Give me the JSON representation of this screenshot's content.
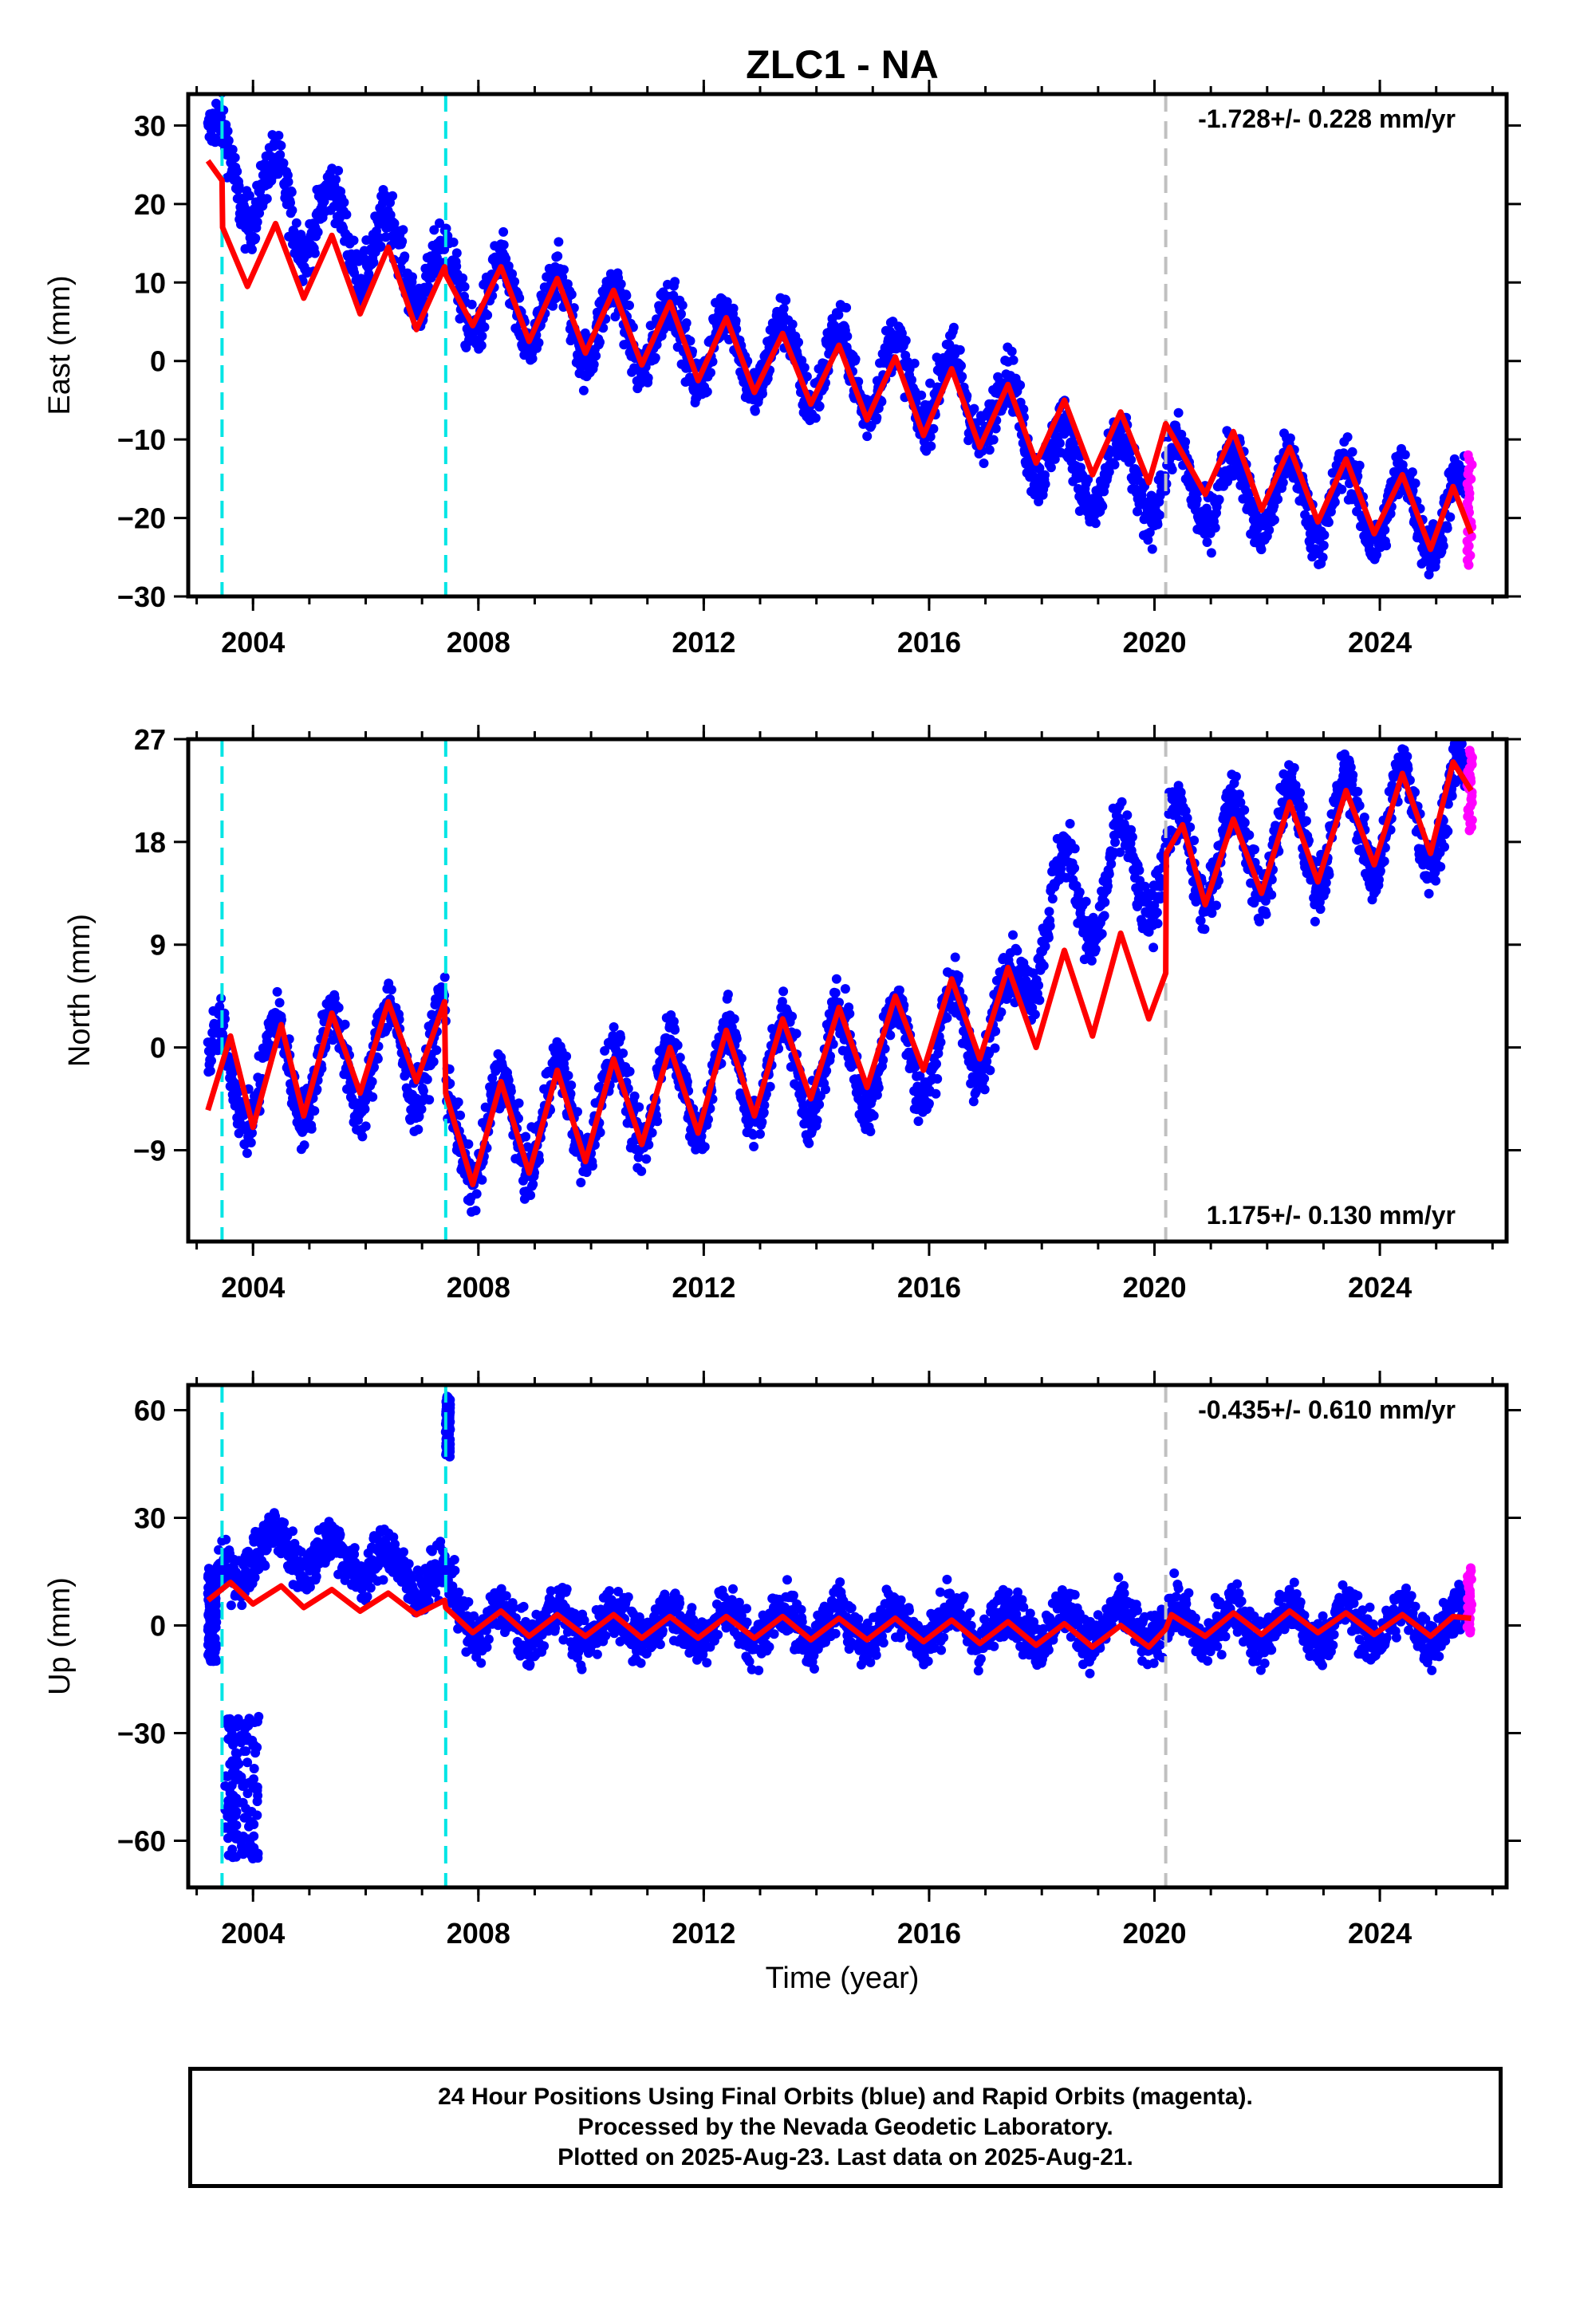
{
  "title": "ZLC1 - NA",
  "xlabel": "Time (year)",
  "x_ticks": [
    2004,
    2008,
    2012,
    2016,
    2020,
    2024
  ],
  "xlim": [
    2002.85,
    2026.25
  ],
  "colors": {
    "final_orbits": "#0000ff",
    "rapid_orbits": "#ff00ff",
    "model": "#ff0000",
    "equipment_change": "#00e5e5",
    "other_offset": "#c0c0c0"
  },
  "caption": {
    "line1": "24 Hour Positions Using Final Orbits (blue) and Rapid Orbits (magenta).",
    "line2": "Processed by the Nevada Geodetic Laboratory.",
    "line3": "Plotted on 2025-Aug-23. Last data on 2025-Aug-21."
  },
  "chart_data": [
    {
      "type": "scatter",
      "ylabel": "East (mm)",
      "ylim": [
        -30,
        34
      ],
      "y_ticks": [
        -30,
        -20,
        -10,
        0,
        10,
        20,
        30
      ],
      "velocity": "-1.728+/- 0.228 mm/yr",
      "velocity_position": "top-right",
      "offset_lines": [
        {
          "x": 2003.45,
          "style": "cyan-dashed"
        },
        {
          "x": 2007.42,
          "style": "cyan-dashed"
        },
        {
          "x": 2020.2,
          "style": "gray-dashed"
        }
      ],
      "model_series": {
        "name": "model",
        "points": [
          [
            2003.2,
            25.5
          ],
          [
            2003.45,
            23
          ],
          [
            2003.46,
            17
          ],
          [
            2003.9,
            9.5
          ],
          [
            2004.4,
            17.5
          ],
          [
            2004.9,
            8
          ],
          [
            2005.4,
            16
          ],
          [
            2005.9,
            6
          ],
          [
            2006.4,
            14.5
          ],
          [
            2006.9,
            4
          ],
          [
            2007.4,
            12
          ],
          [
            2007.42,
            11
          ],
          [
            2007.9,
            4.5
          ],
          [
            2008.4,
            12
          ],
          [
            2008.9,
            2.5
          ],
          [
            2009.4,
            10.5
          ],
          [
            2009.9,
            1
          ],
          [
            2010.4,
            9
          ],
          [
            2010.9,
            -0.5
          ],
          [
            2011.4,
            7.5
          ],
          [
            2011.9,
            -2.5
          ],
          [
            2012.4,
            5.5
          ],
          [
            2012.9,
            -4
          ],
          [
            2013.4,
            3.5
          ],
          [
            2013.9,
            -5.5
          ],
          [
            2014.4,
            2
          ],
          [
            2014.9,
            -7.5
          ],
          [
            2015.4,
            0.5
          ],
          [
            2015.9,
            -9.5
          ],
          [
            2016.4,
            -1
          ],
          [
            2016.9,
            -11
          ],
          [
            2017.4,
            -3
          ],
          [
            2017.9,
            -13
          ],
          [
            2018.4,
            -5
          ],
          [
            2018.9,
            -14.5
          ],
          [
            2019.4,
            -6.5
          ],
          [
            2019.9,
            -15.5
          ],
          [
            2020.2,
            -8
          ],
          [
            2020.9,
            -17
          ],
          [
            2021.4,
            -9
          ],
          [
            2021.9,
            -19
          ],
          [
            2022.4,
            -11
          ],
          [
            2022.9,
            -20.5
          ],
          [
            2023.4,
            -12.5
          ],
          [
            2023.9,
            -22
          ],
          [
            2024.4,
            -14.5
          ],
          [
            2024.9,
            -24
          ],
          [
            2025.3,
            -16
          ],
          [
            2025.62,
            -22
          ]
        ]
      },
      "final_series": {
        "name": "Final Orbits",
        "trend": [
          [
            2003.2,
            27
          ],
          [
            2004,
            22
          ],
          [
            2008,
            8
          ],
          [
            2012,
            2
          ],
          [
            2016,
            -3
          ],
          [
            2017.5,
            -7
          ],
          [
            2018.5,
            -14
          ],
          [
            2020,
            -15
          ],
          [
            2025.5,
            -20
          ]
        ],
        "amplitude": 5,
        "noise": 2.5
      },
      "rapid_series": {
        "name": "Rapid Orbits",
        "x_range": [
          2025.55,
          2025.64
        ],
        "y_range": [
          -26,
          -12
        ]
      }
    },
    {
      "type": "scatter",
      "ylabel": "North (mm)",
      "ylim": [
        -17,
        27
      ],
      "y_ticks": [
        -9,
        0,
        9,
        18,
        27
      ],
      "velocity": "1.175+/- 0.130 mm/yr",
      "velocity_position": "bottom-right",
      "offset_lines": [
        {
          "x": 2003.45,
          "style": "cyan-dashed"
        },
        {
          "x": 2007.42,
          "style": "cyan-dashed"
        },
        {
          "x": 2020.2,
          "style": "gray-dashed"
        }
      ],
      "model_series": {
        "name": "model",
        "points": [
          [
            2003.2,
            -5.5
          ],
          [
            2003.6,
            1
          ],
          [
            2004,
            -7
          ],
          [
            2004.5,
            2
          ],
          [
            2004.9,
            -6
          ],
          [
            2005.4,
            3
          ],
          [
            2005.9,
            -4
          ],
          [
            2006.4,
            4
          ],
          [
            2006.9,
            -3
          ],
          [
            2007.4,
            4
          ],
          [
            2007.42,
            -4
          ],
          [
            2007.9,
            -12
          ],
          [
            2008.4,
            -3
          ],
          [
            2008.9,
            -11
          ],
          [
            2009.4,
            -2
          ],
          [
            2009.9,
            -10
          ],
          [
            2010.4,
            -1
          ],
          [
            2010.9,
            -8.5
          ],
          [
            2011.4,
            0
          ],
          [
            2011.9,
            -7.5
          ],
          [
            2012.4,
            1.5
          ],
          [
            2012.9,
            -6
          ],
          [
            2013.4,
            2.5
          ],
          [
            2013.9,
            -4.5
          ],
          [
            2014.4,
            3.5
          ],
          [
            2014.9,
            -3.5
          ],
          [
            2015.4,
            4.5
          ],
          [
            2015.9,
            -2
          ],
          [
            2016.4,
            6
          ],
          [
            2016.9,
            -1
          ],
          [
            2017.4,
            7
          ],
          [
            2017.9,
            0
          ],
          [
            2018.4,
            8.5
          ],
          [
            2018.9,
            1
          ],
          [
            2019.4,
            10
          ],
          [
            2019.9,
            2.5
          ],
          [
            2020.2,
            6.5
          ],
          [
            2020.21,
            17
          ],
          [
            2020.5,
            19.5
          ],
          [
            2020.9,
            12.5
          ],
          [
            2021.4,
            20
          ],
          [
            2021.9,
            13.5
          ],
          [
            2022.4,
            21.5
          ],
          [
            2022.9,
            14.5
          ],
          [
            2023.4,
            22.5
          ],
          [
            2023.9,
            16
          ],
          [
            2024.4,
            24
          ],
          [
            2024.9,
            17
          ],
          [
            2025.3,
            25
          ],
          [
            2025.62,
            22.5
          ]
        ]
      },
      "final_series": {
        "name": "Final Orbits",
        "trend": [
          [
            2003.2,
            -3
          ],
          [
            2007.42,
            0
          ],
          [
            2007.43,
            -8
          ],
          [
            2012,
            -3
          ],
          [
            2016,
            0
          ],
          [
            2017.5,
            3
          ],
          [
            2018,
            12
          ],
          [
            2020,
            16
          ],
          [
            2025.5,
            21
          ]
        ],
        "amplitude": 4.5,
        "noise": 1.8
      },
      "rapid_series": {
        "name": "Rapid Orbits",
        "x_range": [
          2025.55,
          2025.64
        ],
        "y_range": [
          19,
          26
        ]
      }
    },
    {
      "type": "scatter",
      "ylabel": "Up (mm)",
      "ylim": [
        -73,
        67
      ],
      "y_ticks": [
        -60,
        -30,
        0,
        30,
        60
      ],
      "velocity": "-0.435+/- 0.610 mm/yr",
      "velocity_position": "top-right",
      "offset_lines": [
        {
          "x": 2003.45,
          "style": "cyan-dashed"
        },
        {
          "x": 2007.42,
          "style": "cyan-dashed"
        },
        {
          "x": 2020.2,
          "style": "gray-dashed"
        }
      ],
      "model_series": {
        "name": "model",
        "points": [
          [
            2003.2,
            7
          ],
          [
            2003.6,
            12
          ],
          [
            2004,
            6
          ],
          [
            2004.5,
            11
          ],
          [
            2004.9,
            5
          ],
          [
            2005.4,
            10
          ],
          [
            2005.9,
            4
          ],
          [
            2006.4,
            9
          ],
          [
            2006.9,
            3
          ],
          [
            2007.4,
            7
          ],
          [
            2007.42,
            5
          ],
          [
            2007.9,
            -2
          ],
          [
            2008.4,
            4
          ],
          [
            2008.9,
            -3
          ],
          [
            2009.4,
            3
          ],
          [
            2009.9,
            -3
          ],
          [
            2010.4,
            3
          ],
          [
            2010.9,
            -3.5
          ],
          [
            2011.4,
            2.5
          ],
          [
            2011.9,
            -3.5
          ],
          [
            2012.4,
            2.5
          ],
          [
            2012.9,
            -3.5
          ],
          [
            2013.4,
            2.5
          ],
          [
            2013.9,
            -4
          ],
          [
            2014.4,
            2
          ],
          [
            2014.9,
            -4
          ],
          [
            2015.4,
            2
          ],
          [
            2015.9,
            -4.5
          ],
          [
            2016.4,
            1.5
          ],
          [
            2016.9,
            -5
          ],
          [
            2017.4,
            1
          ],
          [
            2017.9,
            -5.5
          ],
          [
            2018.4,
            0.5
          ],
          [
            2018.9,
            -6
          ],
          [
            2019.4,
            0
          ],
          [
            2019.9,
            -6
          ],
          [
            2020.2,
            -1
          ],
          [
            2020.3,
            3
          ],
          [
            2020.9,
            -3
          ],
          [
            2021.4,
            3.5
          ],
          [
            2021.9,
            -2.5
          ],
          [
            2022.4,
            4
          ],
          [
            2022.9,
            -2
          ],
          [
            2023.4,
            3.5
          ],
          [
            2023.9,
            -2.5
          ],
          [
            2024.4,
            3
          ],
          [
            2024.9,
            -3
          ],
          [
            2025.3,
            2.5
          ],
          [
            2025.62,
            2
          ]
        ]
      },
      "final_series": {
        "name": "Final Orbits",
        "trend": [
          [
            2003.2,
            5
          ],
          [
            2004,
            22
          ],
          [
            2006,
            18
          ],
          [
            2007.3,
            12
          ],
          [
            2008,
            0
          ],
          [
            2025.5,
            0
          ]
        ],
        "amplitude": 5,
        "noise": 5
      },
      "outlier_clusters": [
        {
          "x_range": [
            2003.2,
            2003.35
          ],
          "y_range": [
            -10,
            15
          ]
        },
        {
          "x_range": [
            2003.5,
            2004.1
          ],
          "y_range": [
            -65,
            -25
          ]
        },
        {
          "x_range": [
            2007.42,
            2007.5
          ],
          "y_range": [
            47,
            64
          ]
        }
      ],
      "rapid_series": {
        "name": "Rapid Orbits",
        "x_range": [
          2025.55,
          2025.64
        ],
        "y_range": [
          -2,
          16
        ]
      }
    }
  ]
}
